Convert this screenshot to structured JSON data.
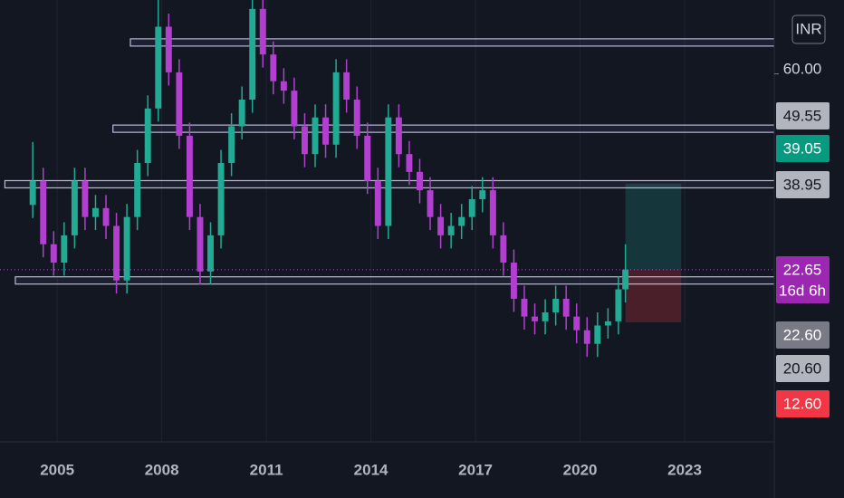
{
  "chart_data": {
    "type": "candlestick",
    "currency": "INR",
    "x": [
      2004.3,
      2004.6,
      2004.9,
      2005.2,
      2005.5,
      2005.8,
      2006.1,
      2006.4,
      2006.7,
      2007.0,
      2007.3,
      2007.6,
      2007.9,
      2008.2,
      2008.5,
      2008.8,
      2009.1,
      2009.4,
      2009.7,
      2010.0,
      2010.3,
      2010.6,
      2010.9,
      2011.2,
      2011.5,
      2011.8,
      2012.1,
      2012.4,
      2012.7,
      2013.0,
      2013.3,
      2013.6,
      2013.9,
      2014.2,
      2014.5,
      2014.8,
      2015.1,
      2015.4,
      2015.7,
      2016.0,
      2016.3,
      2016.6,
      2016.9,
      2017.2,
      2017.5,
      2017.8,
      2018.1,
      2018.4,
      2018.7,
      2019.0,
      2019.3,
      2019.6,
      2019.9,
      2020.2,
      2020.5,
      2020.8,
      2021.1,
      2021.3
    ],
    "open": [
      35,
      39.6,
      27.5,
      24,
      29.2,
      39.6,
      32.7,
      34.4,
      31,
      20.6,
      32.7,
      43,
      53.4,
      69,
      60.3,
      48.2,
      32.7,
      22.3,
      29.2,
      43,
      50,
      55.1,
      72.4,
      63.7,
      58.6,
      56.8,
      50,
      44.7,
      51.7,
      46.5,
      60.3,
      55.1,
      48.2,
      39.6,
      31,
      51.7,
      44.7,
      41.3,
      37.8,
      32.7,
      29.2,
      31,
      32.7,
      36.1,
      37.8,
      29.2,
      24,
      17.1,
      13.7,
      12.8,
      14.5,
      17.1,
      13.7,
      11.1,
      8.5,
      12,
      12.8,
      18.9
    ],
    "high": [
      47,
      42.1,
      30,
      31.7,
      42.1,
      42.1,
      36.9,
      36.9,
      33.5,
      35.2,
      45.5,
      55.9,
      76,
      71.5,
      62.8,
      50.7,
      35.2,
      31.7,
      45.5,
      52.5,
      57.6,
      76,
      74.9,
      66.2,
      61.1,
      59.3,
      52.5,
      54.2,
      54.2,
      62.8,
      62.8,
      57.6,
      50.7,
      42.1,
      54.2,
      54.2,
      47.2,
      43.8,
      40.3,
      35.2,
      33.5,
      35.2,
      38.6,
      40.3,
      40.3,
      31.7,
      26.5,
      19.6,
      16.2,
      17,
      19.6,
      19.6,
      16.2,
      13.6,
      14.5,
      15.3,
      21.4,
      27.5
    ],
    "low": [
      32.5,
      25,
      21.5,
      21.5,
      26.7,
      30.2,
      30.2,
      28.5,
      18.1,
      18.1,
      30.2,
      40.5,
      50.9,
      57.8,
      45.7,
      30.2,
      19.8,
      19.8,
      26.7,
      40.5,
      47.5,
      52.6,
      61.2,
      56.1,
      54.3,
      47.5,
      42.2,
      42.2,
      44,
      44,
      52.6,
      45.7,
      37.1,
      28.5,
      28.5,
      42.2,
      38.8,
      35.3,
      30.2,
      26.7,
      26.7,
      28.5,
      30.2,
      33.6,
      26.7,
      21.5,
      14.6,
      11.2,
      10.3,
      10.3,
      12,
      11.2,
      8.6,
      6,
      6,
      9.5,
      10.3,
      16.4
    ],
    "close": [
      39.6,
      27.5,
      24,
      29.2,
      39.6,
      32.7,
      34.4,
      31,
      20.6,
      32.7,
      43,
      53.4,
      69,
      60.3,
      48.2,
      32.7,
      22.3,
      29.2,
      43,
      50,
      55.1,
      72.4,
      63.7,
      58.6,
      56.8,
      50,
      44.7,
      51.7,
      46.5,
      60.3,
      55.1,
      48.2,
      39.6,
      31,
      51.7,
      44.7,
      41.3,
      37.8,
      32.7,
      29.2,
      31,
      32.7,
      36.1,
      37.8,
      29.2,
      24,
      17.1,
      13.7,
      12.8,
      14.5,
      17.1,
      13.7,
      11.1,
      8.5,
      12,
      12.8,
      18.9,
      22.65
    ],
    "up_color": "#22ab94",
    "down_color": "#b23fd0",
    "xlim": [
      2003.36,
      2025.57
    ],
    "xticks": [
      2005,
      2008,
      2011,
      2014,
      2017,
      2020,
      2023
    ],
    "ylim": [
      -10.2,
      74.1
    ],
    "yticks": [
      {
        "value": 60,
        "label": "60.00"
      }
    ],
    "grid": true,
    "levels": [
      {
        "value": 66,
        "x_start": 2007.1
      },
      {
        "value": 49.55,
        "label": "49.55",
        "x_start": 2006.6
      },
      {
        "value": 38.95,
        "label": "38.95",
        "x_start": 2003.5
      },
      {
        "value": 20.6,
        "label": "20.60",
        "x_start": 2003.8
      }
    ],
    "position": {
      "entry": 22.6,
      "entry_label": "22.60",
      "target": 39.05,
      "target_label": "39.05",
      "stop": 12.6,
      "stop_label": "12.60",
      "x_start": 2021.3,
      "x_end": 2022.9
    },
    "last_price": {
      "value": 22.65,
      "label": "22.65",
      "countdown": "16d 6h"
    }
  }
}
